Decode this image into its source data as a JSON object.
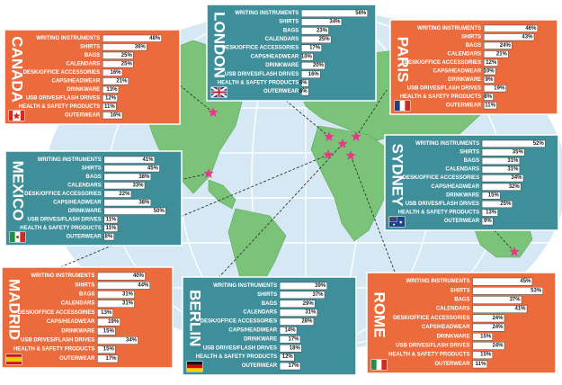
{
  "palette": {
    "ocean": "#d6e8f3",
    "grid": "#ffffff",
    "land": "#7cc37a",
    "land_edge": "#5aa85a",
    "orange_panel": "#ec6b3d",
    "teal_panel": "#3f8f9b",
    "bar": "#ffffff",
    "bar_border": "#333333",
    "star": "#e6398a",
    "dash": "#333333"
  },
  "chart_data": [
    {
      "type": "bar",
      "title": "CANADA",
      "theme": "orange",
      "flag": "canada",
      "categories": [
        "WRITING INSTRUMENTS",
        "SHIRTS",
        "BAGS",
        "CALENDARS",
        "DESK/OFFICE ACCESSORIES",
        "CAPS/HEADWEAR",
        "DRINKWARE",
        "USB DRIVES/FLASH DRIVES",
        "HEALTH & SAFETY PRODUCTS",
        "OUTERWEAR"
      ],
      "values": [
        48,
        36,
        25,
        25,
        16,
        21,
        13,
        12,
        11,
        16
      ],
      "value_labels": [
        "48%",
        "36%",
        "25%",
        "25%",
        "16%",
        "21%",
        "13%",
        "12%",
        "11%",
        "16%"
      ],
      "xlim": [
        0,
        60
      ]
    },
    {
      "type": "bar",
      "title": "LONDON",
      "theme": "teal",
      "flag": "uk",
      "categories": [
        "WRITING INSTRUMENTS",
        "SHIRTS",
        "BAGS",
        "CALENDARS",
        "DESK/OFFICE ACCESSORIES",
        "CAPS/HEADWEAR",
        "DRINKWARE",
        "USB DRIVES/FLASH DRIVES",
        "HEALTH & SAFETY PRODUCTS",
        "OUTERWEAR"
      ],
      "values": [
        56,
        34,
        23,
        25,
        17,
        10,
        20,
        16,
        6,
        6
      ],
      "value_labels": [
        "56%",
        "34%",
        "23%",
        "25%",
        "17%",
        "10%",
        "20%",
        "16%",
        "6%",
        "6%"
      ],
      "xlim": [
        0,
        60
      ]
    },
    {
      "type": "bar",
      "title": "PARIS",
      "theme": "orange",
      "flag": "france",
      "categories": [
        "WRITING INSTRUMENTS",
        "SHIRTS",
        "BAGS",
        "CALENDARS",
        "DESK/OFFICE ACCESSORIES",
        "CAPS/HEADWEAR",
        "DRINKWARE",
        "USB DRIVES/FLASH DRIVES",
        "HEALTH & SAFETY PRODUCTS",
        "OUTERWEAR"
      ],
      "values": [
        46,
        43,
        24,
        21,
        12,
        10,
        9,
        19,
        8,
        11
      ],
      "value_labels": [
        "46%",
        "43%",
        "24%",
        "21%",
        "12%",
        "10%",
        "9%",
        "19%",
        "8%",
        "11%"
      ],
      "xlim": [
        0,
        60
      ]
    },
    {
      "type": "bar",
      "title": "MEXICO",
      "theme": "teal",
      "flag": "mexico",
      "categories": [
        "WRITING INSTRUMENTS",
        "SHIRTS",
        "BAGS",
        "CALENDARS",
        "DESK/OFFICE ACCESSORIES",
        "CAPS/HEADWEAR",
        "DRINKWARE",
        "USB DRIVES/FLASH DRIVES",
        "HEALTH & SAFETY PRODUCTS",
        "OUTERWEAR"
      ],
      "values": [
        41,
        45,
        38,
        33,
        22,
        38,
        50,
        11,
        11,
        8
      ],
      "value_labels": [
        "41%",
        "45%",
        "38%",
        "33%",
        "22%",
        "38%",
        "50%",
        "11%",
        "11%",
        "8%"
      ],
      "xlim": [
        0,
        60
      ]
    },
    {
      "type": "bar",
      "title": "SYDNEY",
      "theme": "teal",
      "flag": "australia",
      "categories": [
        "WRITING INSTRUMENTS",
        "SHIRTS",
        "BAGS",
        "CALENDARS",
        "DESK/OFFICE ACCESSORIES",
        "CAPS/HEADWEAR",
        "DRINKWARE",
        "USB DRIVES/FLASH DRIVES",
        "HEALTH & SAFETY PRODUCTS",
        "OUTERWEAR"
      ],
      "values": [
        52,
        35,
        31,
        31,
        34,
        32,
        15,
        25,
        13,
        9
      ],
      "value_labels": [
        "52%",
        "35%",
        "31%",
        "31%",
        "34%",
        "32%",
        "15%",
        "25%",
        "13%",
        "9%"
      ],
      "xlim": [
        0,
        60
      ]
    },
    {
      "type": "bar",
      "title": "MADRID",
      "theme": "orange",
      "flag": "spain",
      "categories": [
        "WRITING INSTRUMENTS",
        "SHIRTS",
        "BAGS",
        "CALENDARS",
        "DESK/OFFICE ACCESSORIES",
        "CAPS/HEADWEAR",
        "DRINKWARE",
        "USB DRIVES/FLASH DRIVES",
        "HEALTH & SAFETY PRODUCTS",
        "OUTERWEAR"
      ],
      "values": [
        40,
        44,
        31,
        31,
        13,
        19,
        15,
        34,
        15,
        17
      ],
      "value_labels": [
        "40%",
        "44%",
        "31%",
        "31%",
        "13%",
        "19%",
        "15%",
        "34%",
        "15%",
        "17%"
      ],
      "xlim": [
        0,
        60
      ]
    },
    {
      "type": "bar",
      "title": "BERLIN",
      "theme": "teal",
      "flag": "germany",
      "categories": [
        "WRITING INSTRUMENTS",
        "SHIRTS",
        "BAGS",
        "CALENDARS",
        "DESK/OFFICE ACCESSORIES",
        "CAPS/HEADWEAR",
        "DRINKWARE",
        "USB DRIVES/FLASH DRIVES",
        "HEALTH & SAFETY PRODUCTS",
        "OUTERWEAR"
      ],
      "values": [
        39,
        37,
        29,
        31,
        28,
        14,
        17,
        18,
        12,
        17
      ],
      "value_labels": [
        "39%",
        "37%",
        "29%",
        "31%",
        "28%",
        "14%",
        "17%",
        "18%",
        "12%",
        "17%"
      ],
      "xlim": [
        0,
        60
      ]
    },
    {
      "type": "bar",
      "title": "ROME",
      "theme": "orange",
      "flag": "italy",
      "categories": [
        "WRITING INSTRUMENTS",
        "SHIRTS",
        "BAGS",
        "CALENDARS",
        "DESK/OFFICE ACCESSORIES",
        "CAPS/HEADWEAR",
        "DRINKWARE",
        "USB DRIVES/FLASH DRIVES",
        "HEALTH & SAFETY PRODUCTS",
        "OUTERWEAR"
      ],
      "values": [
        45,
        53,
        37,
        41,
        24,
        24,
        15,
        24,
        15,
        11
      ],
      "value_labels": [
        "45%",
        "53%",
        "37%",
        "41%",
        "24%",
        "24%",
        "15%",
        "24%",
        "15%",
        "11%"
      ],
      "xlim": [
        0,
        60
      ]
    }
  ]
}
